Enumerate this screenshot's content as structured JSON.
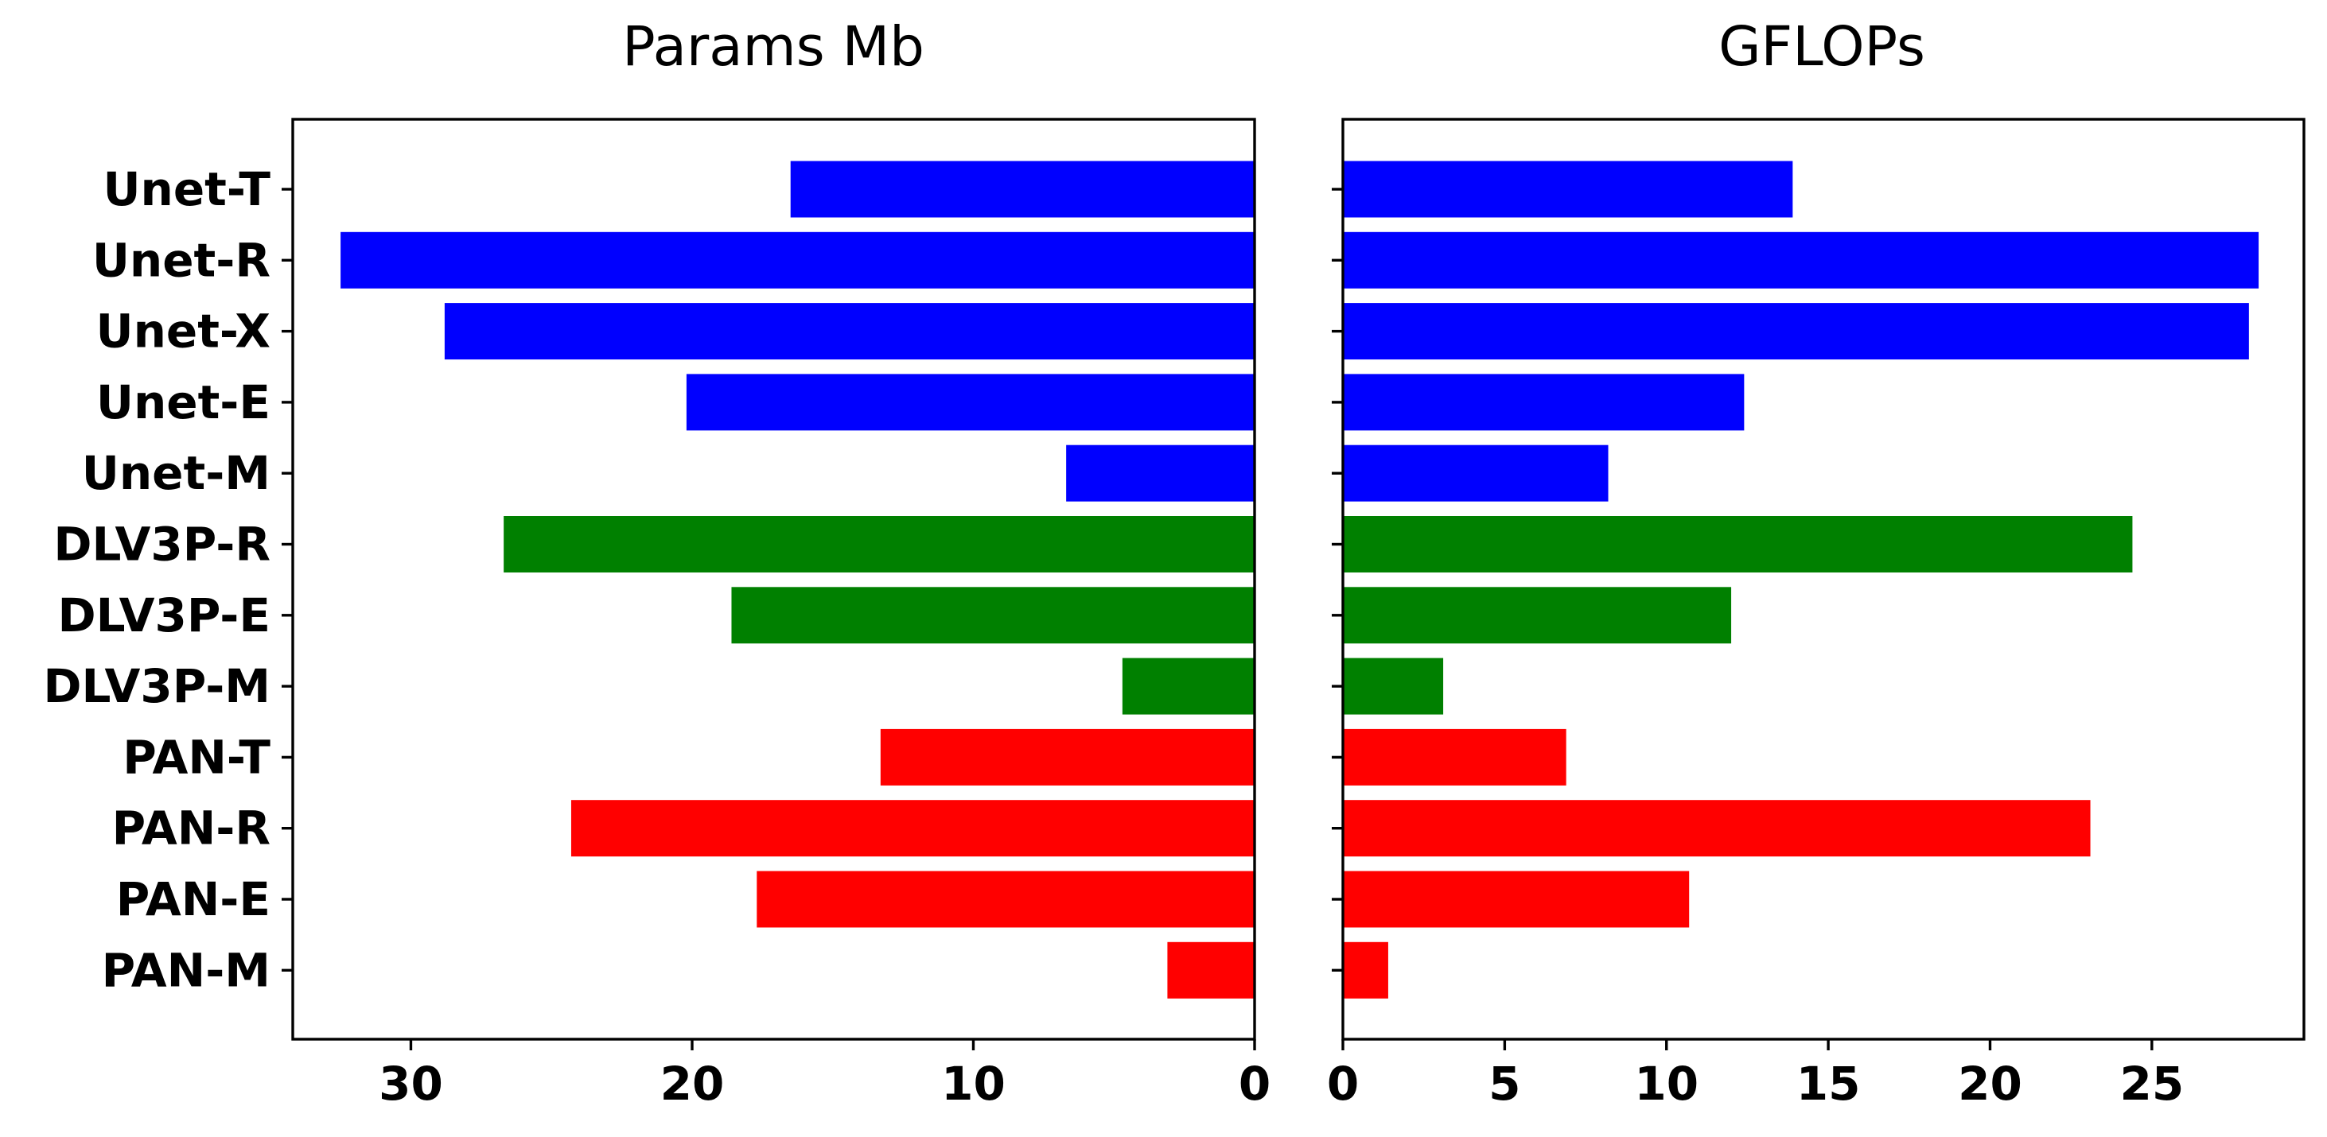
{
  "chart_data": [
    {
      "type": "bar",
      "orientation": "horizontal",
      "x_direction": "inverted",
      "title": "Params Mb",
      "xlabel": "",
      "ylabel": "",
      "categories": [
        "Unet-T",
        "Unet-R",
        "Unet-X",
        "Unet-E",
        "Unet-M",
        "DLV3P-R",
        "DLV3P-E",
        "DLV3P-M",
        "PAN-T",
        "PAN-R",
        "PAN-E",
        "PAN-M"
      ],
      "values": [
        16.5,
        32.5,
        28.8,
        20.2,
        6.7,
        26.7,
        18.6,
        4.7,
        13.3,
        24.3,
        17.7,
        3.1
      ],
      "colors": [
        "#0000ff",
        "#0000ff",
        "#0000ff",
        "#0000ff",
        "#0000ff",
        "#008000",
        "#008000",
        "#008000",
        "#ff0000",
        "#ff0000",
        "#ff0000",
        "#ff0000"
      ],
      "xlim": [
        34.2,
        0
      ],
      "xticks": [
        30,
        20,
        10,
        0
      ],
      "grid": false
    },
    {
      "type": "bar",
      "orientation": "horizontal",
      "title": "GFLOPs",
      "xlabel": "",
      "ylabel": "",
      "categories": [
        "Unet-T",
        "Unet-R",
        "Unet-X",
        "Unet-E",
        "Unet-M",
        "DLV3P-R",
        "DLV3P-E",
        "DLV3P-M",
        "PAN-T",
        "PAN-R",
        "PAN-E",
        "PAN-M"
      ],
      "values": [
        13.9,
        28.3,
        28.0,
        12.4,
        8.2,
        24.4,
        12.0,
        3.1,
        6.9,
        23.1,
        10.7,
        1.4
      ],
      "colors": [
        "#0000ff",
        "#0000ff",
        "#0000ff",
        "#0000ff",
        "#0000ff",
        "#008000",
        "#008000",
        "#008000",
        "#ff0000",
        "#ff0000",
        "#ff0000",
        "#ff0000"
      ],
      "xlim": [
        0,
        29.7
      ],
      "xticks": [
        0,
        5,
        10,
        15,
        20,
        25
      ],
      "grid": false
    }
  ]
}
